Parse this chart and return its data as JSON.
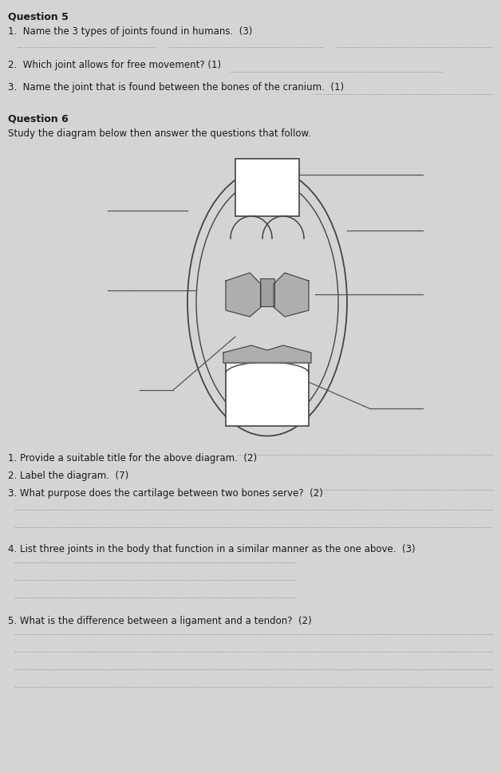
{
  "bg_color": "#d4d4d4",
  "text_color": "#1a1a1a",
  "line_color": "#555555",
  "title_q5": "Question 5",
  "q5_1": "1.  Name the 3 types of joints found in humans.  (3)",
  "q5_2": "2.  Which joint allows for free movement? (1)",
  "q5_3": "3.  Name the joint that is found between the bones of the cranium.  (1)",
  "title_q6": "Question 6",
  "q6_intro": "Study the diagram below then answer the questions that follow.",
  "q6_1": "1. Provide a suitable title for the above diagram.  (2)",
  "q6_2": "2. Label the diagram.  (7)",
  "q6_3": "3. What purpose does the cartilage between two bones serve?  (2)",
  "q6_4": "4. List three joints in the body that function in a similar manner as the one above.  (3)",
  "q6_5": "5. What is the difference between a ligament and a tendon?  (2)",
  "dot_line_color": "#888888"
}
